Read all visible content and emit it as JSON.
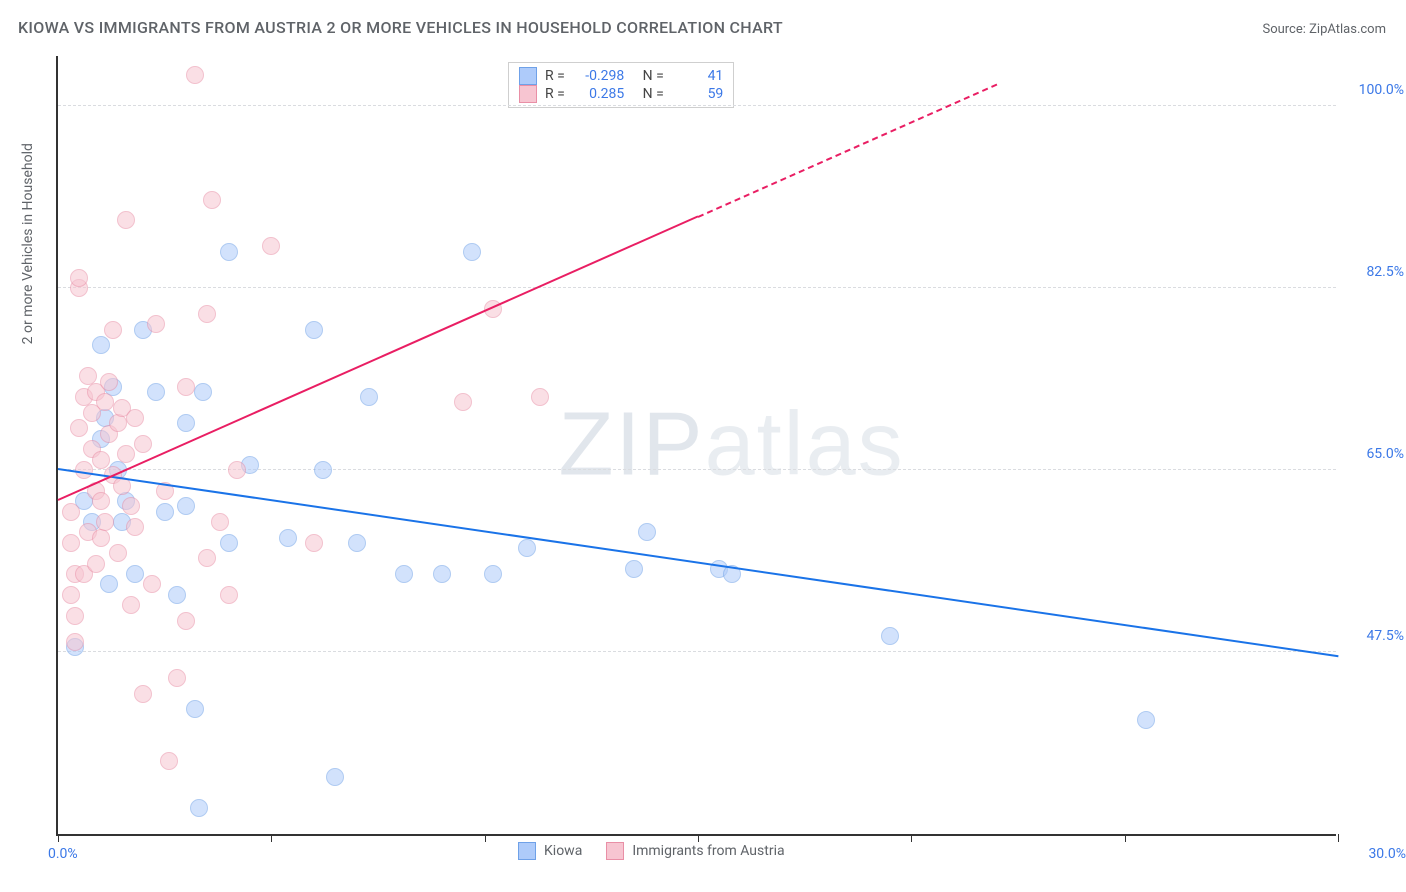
{
  "title": "KIOWA VS IMMIGRANTS FROM AUSTRIA 2 OR MORE VEHICLES IN HOUSEHOLD CORRELATION CHART",
  "source": "Source: ZipAtlas.com",
  "y_axis_title": "2 or more Vehicles in Household",
  "watermark_bold": "ZIP",
  "watermark_thin": "atlas",
  "chart": {
    "type": "scatter",
    "background_color": "#ffffff",
    "grid_color": "#dadce0",
    "axis_color": "#333333",
    "xlim": [
      0,
      30
    ],
    "ylim": [
      30,
      105
    ],
    "x_ticks": [
      0,
      5,
      10,
      15,
      20,
      25,
      30
    ],
    "x_tick_labels": {
      "min": "0.0%",
      "max": "30.0%"
    },
    "y_gridlines": [
      47.5,
      65.0,
      82.5,
      100.0
    ],
    "y_tick_labels": [
      "47.5%",
      "65.0%",
      "82.5%",
      "100.0%"
    ],
    "label_fontsize": 14,
    "label_color": "#3b78e7",
    "marker_radius": 9,
    "marker_opacity": 0.55,
    "series": [
      {
        "name": "Kiowa",
        "fill": "#aecbfa",
        "stroke": "#6fa1e8",
        "R": "-0.298",
        "N": "41",
        "trend": {
          "x1": 0,
          "y1": 65.0,
          "x2": 30,
          "y2": 47.0,
          "color": "#1a73e8",
          "dash_from_x": null
        },
        "points": [
          [
            0.4,
            48.0
          ],
          [
            0.6,
            62.0
          ],
          [
            0.8,
            60.0
          ],
          [
            1.0,
            77.0
          ],
          [
            1.0,
            68.0
          ],
          [
            1.1,
            70.0
          ],
          [
            1.2,
            54.0
          ],
          [
            1.3,
            73.0
          ],
          [
            1.4,
            65.0
          ],
          [
            1.5,
            60.0
          ],
          [
            1.6,
            62.0
          ],
          [
            2.0,
            78.5
          ],
          [
            2.3,
            72.5
          ],
          [
            2.5,
            61.0
          ],
          [
            3.0,
            61.5
          ],
          [
            3.0,
            69.5
          ],
          [
            3.2,
            42.0
          ],
          [
            3.3,
            32.5
          ],
          [
            3.4,
            72.5
          ],
          [
            4.0,
            86.0
          ],
          [
            4.0,
            58.0
          ],
          [
            4.5,
            65.5
          ],
          [
            5.4,
            58.5
          ],
          [
            6.0,
            78.5
          ],
          [
            6.2,
            65.0
          ],
          [
            6.5,
            35.5
          ],
          [
            7.0,
            58.0
          ],
          [
            7.3,
            72.0
          ],
          [
            8.1,
            55.0
          ],
          [
            9.0,
            55.0
          ],
          [
            9.7,
            86.0
          ],
          [
            10.2,
            55.0
          ],
          [
            11.0,
            57.5
          ],
          [
            13.5,
            55.5
          ],
          [
            13.8,
            59.0
          ],
          [
            15.5,
            55.5
          ],
          [
            15.8,
            55.0
          ],
          [
            19.5,
            49.0
          ],
          [
            25.5,
            41.0
          ],
          [
            1.8,
            55.0
          ],
          [
            2.8,
            53.0
          ]
        ]
      },
      {
        "name": "Immigrants from Austria",
        "fill": "#f7c5d1",
        "stroke": "#e98fa6",
        "R": "0.285",
        "N": "59",
        "trend": {
          "x1": 0,
          "y1": 62.0,
          "x2": 22,
          "y2": 102.0,
          "color": "#e91e63",
          "dash_from_x": 15
        },
        "points": [
          [
            0.3,
            61.0
          ],
          [
            0.3,
            58.0
          ],
          [
            0.4,
            51.0
          ],
          [
            0.4,
            55.0
          ],
          [
            0.5,
            82.5
          ],
          [
            0.5,
            83.5
          ],
          [
            0.5,
            69.0
          ],
          [
            0.6,
            72.0
          ],
          [
            0.6,
            65.0
          ],
          [
            0.7,
            74.0
          ],
          [
            0.7,
            59.0
          ],
          [
            0.8,
            67.0
          ],
          [
            0.8,
            70.5
          ],
          [
            0.9,
            63.0
          ],
          [
            0.9,
            72.5
          ],
          [
            1.0,
            58.5
          ],
          [
            1.0,
            62.0
          ],
          [
            1.0,
            66.0
          ],
          [
            1.1,
            71.5
          ],
          [
            1.1,
            60.0
          ],
          [
            1.2,
            68.5
          ],
          [
            1.2,
            73.5
          ],
          [
            1.3,
            64.5
          ],
          [
            1.3,
            78.5
          ],
          [
            1.4,
            57.0
          ],
          [
            1.4,
            69.5
          ],
          [
            1.5,
            63.5
          ],
          [
            1.5,
            71.0
          ],
          [
            1.6,
            89.0
          ],
          [
            1.6,
            66.5
          ],
          [
            1.7,
            61.5
          ],
          [
            1.8,
            59.5
          ],
          [
            1.8,
            70.0
          ],
          [
            2.0,
            43.5
          ],
          [
            2.0,
            67.5
          ],
          [
            2.2,
            54.0
          ],
          [
            2.3,
            79.0
          ],
          [
            2.5,
            63.0
          ],
          [
            2.6,
            37.0
          ],
          [
            2.8,
            45.0
          ],
          [
            3.0,
            50.5
          ],
          [
            3.0,
            73.0
          ],
          [
            3.2,
            103.0
          ],
          [
            3.5,
            56.5
          ],
          [
            3.5,
            80.0
          ],
          [
            3.6,
            91.0
          ],
          [
            3.8,
            60.0
          ],
          [
            4.0,
            53.0
          ],
          [
            4.2,
            65.0
          ],
          [
            5.0,
            86.5
          ],
          [
            6.0,
            58.0
          ],
          [
            9.5,
            71.5
          ],
          [
            10.2,
            80.5
          ],
          [
            11.3,
            72.0
          ],
          [
            0.3,
            53.0
          ],
          [
            0.4,
            48.5
          ],
          [
            0.6,
            55.0
          ],
          [
            0.9,
            56.0
          ],
          [
            1.7,
            52.0
          ]
        ]
      }
    ]
  },
  "legend": {
    "items": [
      {
        "label": "Kiowa",
        "fill": "#aecbfa",
        "stroke": "#6fa1e8"
      },
      {
        "label": "Immigrants from Austria",
        "fill": "#f7c5d1",
        "stroke": "#e98fa6"
      }
    ]
  }
}
